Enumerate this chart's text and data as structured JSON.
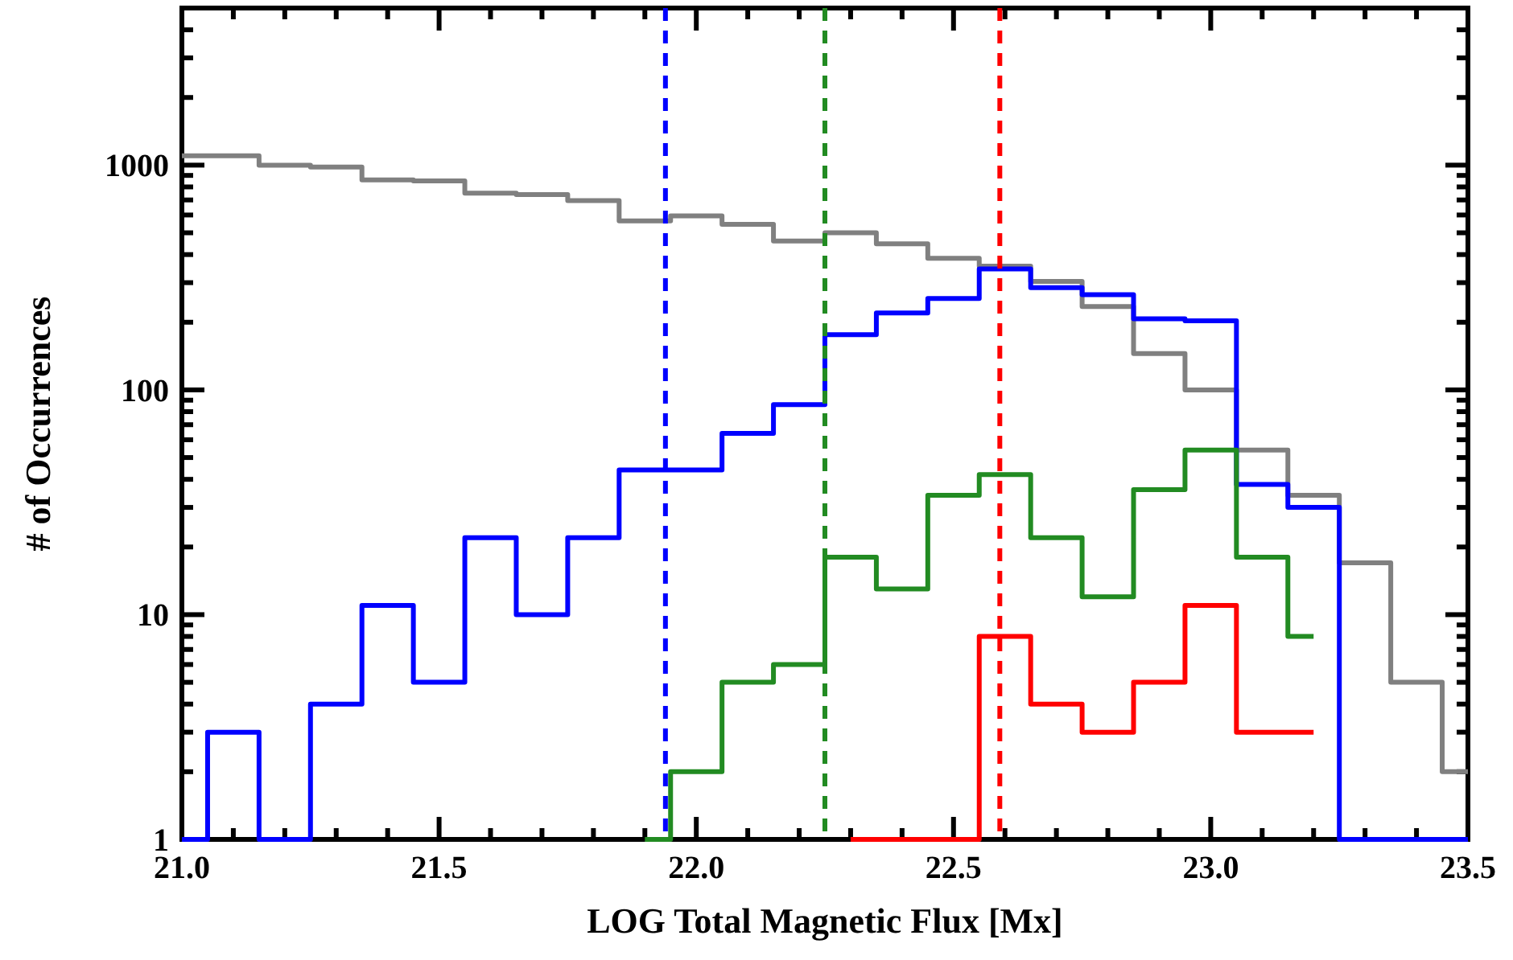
{
  "chart_data": {
    "type": "step",
    "xlabel": "LOG Total Magnetic Flux [Mx]",
    "ylabel": "# of Occurrences",
    "log": "y",
    "grid": false,
    "xlim": [
      21.0,
      23.5
    ],
    "ylim": [
      1,
      5000
    ],
    "xticks": [
      {
        "value": 21.0,
        "label": "21.0"
      },
      {
        "value": 21.1,
        "label": null
      },
      {
        "value": 21.2,
        "label": null
      },
      {
        "value": 21.3,
        "label": null
      },
      {
        "value": 21.4,
        "label": null
      },
      {
        "value": 21.5,
        "label": "21.5"
      },
      {
        "value": 21.6,
        "label": null
      },
      {
        "value": 21.7,
        "label": null
      },
      {
        "value": 21.8,
        "label": null
      },
      {
        "value": 21.9,
        "label": null
      },
      {
        "value": 22.0,
        "label": "22.0"
      },
      {
        "value": 22.1,
        "label": null
      },
      {
        "value": 22.2,
        "label": null
      },
      {
        "value": 22.3,
        "label": null
      },
      {
        "value": 22.4,
        "label": null
      },
      {
        "value": 22.5,
        "label": "22.5"
      },
      {
        "value": 22.6,
        "label": null
      },
      {
        "value": 22.7,
        "label": null
      },
      {
        "value": 22.8,
        "label": null
      },
      {
        "value": 22.9,
        "label": null
      },
      {
        "value": 23.0,
        "label": "23.0"
      },
      {
        "value": 23.1,
        "label": null
      },
      {
        "value": 23.2,
        "label": null
      },
      {
        "value": 23.3,
        "label": null
      },
      {
        "value": 23.4,
        "label": null
      },
      {
        "value": 23.5,
        "label": "23.5"
      }
    ],
    "yticks": [
      1,
      {
        "value": 2,
        "label": null
      },
      {
        "value": 3,
        "label": null
      },
      {
        "value": 4,
        "label": null
      },
      {
        "value": 5,
        "label": null
      },
      {
        "value": 6,
        "label": null
      },
      {
        "value": 7,
        "label": null
      },
      {
        "value": 8,
        "label": null
      },
      {
        "value": 9,
        "label": null
      },
      10,
      {
        "value": 20,
        "label": null
      },
      {
        "value": 30,
        "label": null
      },
      {
        "value": 40,
        "label": null
      },
      {
        "value": 50,
        "label": null
      },
      {
        "value": 60,
        "label": null
      },
      {
        "value": 70,
        "label": null
      },
      {
        "value": 80,
        "label": null
      },
      {
        "value": 90,
        "label": null
      },
      100,
      {
        "value": 200,
        "label": null
      },
      {
        "value": 300,
        "label": null
      },
      {
        "value": 400,
        "label": null
      },
      {
        "value": 500,
        "label": null
      },
      {
        "value": 600,
        "label": null
      },
      {
        "value": 700,
        "label": null
      },
      {
        "value": 800,
        "label": null
      },
      {
        "value": 900,
        "label": null
      },
      1000,
      {
        "value": 2000,
        "label": null
      },
      {
        "value": 3000,
        "label": null
      },
      {
        "value": 4000,
        "label": null
      },
      {
        "value": 5000,
        "label": null
      }
    ],
    "series": [
      {
        "color": "#808080",
        "x": [
          21.0,
          21.15,
          21.25,
          21.35,
          21.45,
          21.55,
          21.65,
          21.75,
          21.85,
          21.95,
          22.05,
          22.15,
          22.25,
          22.35,
          22.45,
          22.55,
          22.65,
          22.75,
          22.85,
          22.95,
          23.05,
          23.15,
          23.25,
          23.35,
          23.45,
          23.5
        ],
        "values": [
          1100,
          1000,
          980,
          860,
          850,
          750,
          740,
          695,
          565,
          595,
          545,
          460,
          500,
          447,
          385,
          355,
          304,
          235,
          145,
          100,
          54,
          34,
          17,
          5,
          2,
          2
        ]
      },
      {
        "color": "#0000ff",
        "x": [
          21.0,
          21.05,
          21.15,
          21.25,
          21.35,
          21.45,
          21.55,
          21.65,
          21.75,
          21.85,
          22.05,
          22.15,
          22.25,
          22.35,
          22.45,
          22.55,
          22.65,
          22.75,
          22.85,
          22.95,
          23.05,
          23.15,
          23.25,
          23.5
        ],
        "values": [
          1,
          3,
          1,
          4,
          11,
          5,
          22,
          10,
          22,
          44,
          64,
          86,
          176,
          220,
          255,
          345,
          285,
          265,
          207,
          203,
          38,
          30,
          1,
          1
        ]
      },
      {
        "color": "#228b22",
        "x": [
          21.9,
          21.95,
          22.05,
          22.15,
          22.25,
          22.35,
          22.45,
          22.55,
          22.65,
          22.75,
          22.85,
          22.95,
          23.05,
          23.15,
          23.2
        ],
        "values": [
          1,
          2,
          5,
          6,
          18,
          13,
          34,
          42,
          22,
          12,
          36,
          54,
          18,
          8,
          8
        ]
      },
      {
        "color": "#ff0000",
        "x": [
          22.3,
          22.55,
          22.65,
          22.75,
          22.85,
          22.95,
          23.05,
          23.2
        ],
        "values": [
          1,
          8,
          4,
          3,
          5,
          11,
          3,
          3
        ]
      }
    ],
    "ref_lines": [
      {
        "axis": "x",
        "value": 21.94,
        "color": "#0000ff",
        "line_style": "dashed"
      },
      {
        "axis": "x",
        "value": 22.25,
        "color": "#228b22",
        "line_style": "dashed"
      },
      {
        "axis": "x",
        "value": 22.59,
        "color": "#ff0000",
        "line_style": "dashed"
      }
    ]
  }
}
